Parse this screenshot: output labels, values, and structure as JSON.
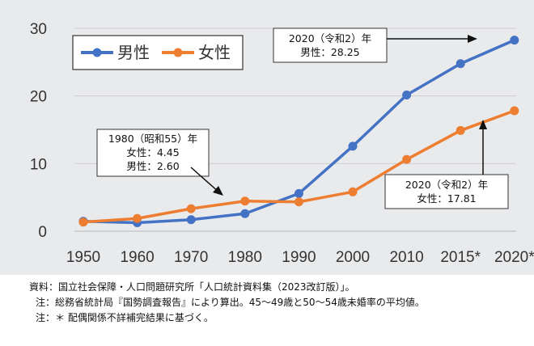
{
  "chart_data": {
    "type": "line",
    "categories": [
      "1950",
      "1960",
      "1970",
      "1980",
      "1990",
      "2000",
      "2010",
      "2015*",
      "2020*"
    ],
    "series": [
      {
        "name": "男性",
        "color": "#4472c4",
        "values": [
          1.46,
          1.26,
          1.7,
          2.6,
          5.57,
          12.57,
          20.14,
          24.77,
          28.25
        ]
      },
      {
        "name": "女性",
        "color": "#ed7d31",
        "values": [
          1.35,
          1.88,
          3.33,
          4.45,
          4.33,
          5.82,
          10.61,
          14.89,
          17.81
        ]
      }
    ],
    "ylim": [
      0,
      30
    ],
    "yticks": [
      0,
      10,
      20,
      30
    ],
    "grid": true,
    "legend": "top-left",
    "annotations": [
      {
        "lines": [
          "1980（昭和55）年",
          "女性：4.45",
          "男性：2.60"
        ]
      },
      {
        "lines": [
          "2020（令和2）年",
          "男性：28.25"
        ]
      },
      {
        "lines": [
          "2020（令和2）年",
          "女性：17.81"
        ]
      }
    ]
  },
  "notes": [
    "資料：国立社会保障・人口問題研究所「人口統計資料集（2023改訂版）」。",
    "注：総務省統計局『国勢調査報告』により算出。45～49歳と50～54歳未婚率の平均値。",
    "注：＊ 配偶関係不詳補完結果に基づく。"
  ]
}
